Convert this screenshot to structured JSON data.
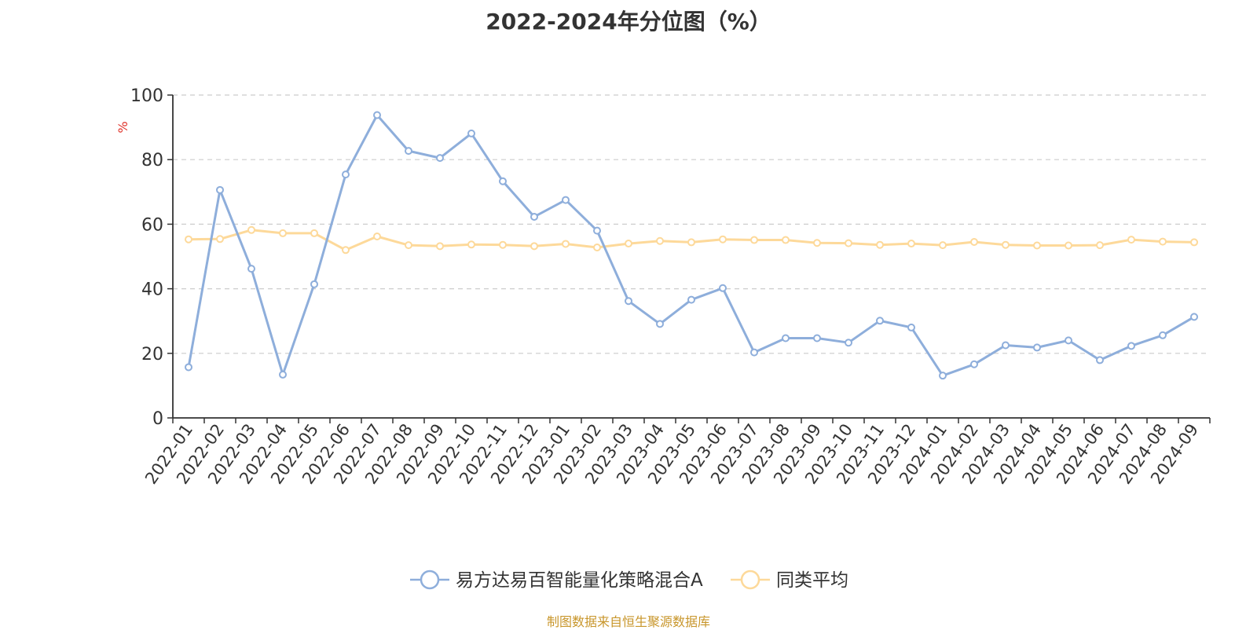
{
  "title": "2022-2024年分位图（%）",
  "source_note": "制图数据来自恒生聚源数据库",
  "colors": {
    "series_a": "#8eaedb",
    "series_b": "#fdd99a",
    "axis": "#333333",
    "grid": "#cccccc",
    "unit": "#e0332a"
  },
  "chart_data": {
    "type": "line",
    "title": "2022-2024年分位图（%）",
    "xlabel": "",
    "ylabel": "%",
    "ylim": [
      0,
      100
    ],
    "yticks": [
      0,
      20,
      40,
      60,
      80,
      100
    ],
    "grid": true,
    "legend_position": "bottom",
    "categories": [
      "2022-01",
      "2022-02",
      "2022-03",
      "2022-04",
      "2022-05",
      "2022-06",
      "2022-07",
      "2022-08",
      "2022-09",
      "2022-10",
      "2022-11",
      "2022-12",
      "2023-01",
      "2023-02",
      "2023-03",
      "2023-04",
      "2023-05",
      "2023-06",
      "2023-07",
      "2023-08",
      "2023-09",
      "2023-10",
      "2023-11",
      "2023-12",
      "2024-01",
      "2024-02",
      "2024-03",
      "2024-04",
      "2024-05",
      "2024-06",
      "2024-07",
      "2024-08",
      "2024-09"
    ],
    "series": [
      {
        "name": "易方达易百智能量化策略混合A",
        "color": "#8eaedb",
        "values": [
          15.7,
          70.6,
          46.2,
          13.4,
          41.4,
          75.4,
          93.8,
          82.7,
          80.5,
          88.1,
          73.3,
          62.3,
          67.5,
          58.0,
          36.2,
          29.1,
          36.6,
          40.2,
          20.3,
          24.7,
          24.7,
          23.3,
          30.1,
          28.0,
          13.1,
          16.6,
          22.5,
          21.8,
          24.0,
          17.9,
          22.3,
          25.6,
          31.3
        ]
      },
      {
        "name": "同类平均",
        "color": "#fdd99a",
        "values": [
          55.3,
          55.4,
          58.2,
          57.2,
          57.2,
          52.0,
          56.2,
          53.5,
          53.2,
          53.7,
          53.6,
          53.2,
          53.9,
          52.8,
          54.0,
          54.8,
          54.4,
          55.3,
          55.1,
          55.1,
          54.2,
          54.1,
          53.6,
          54.0,
          53.5,
          54.5,
          53.6,
          53.4,
          53.4,
          53.5,
          55.2,
          54.6,
          54.4
        ]
      }
    ]
  }
}
